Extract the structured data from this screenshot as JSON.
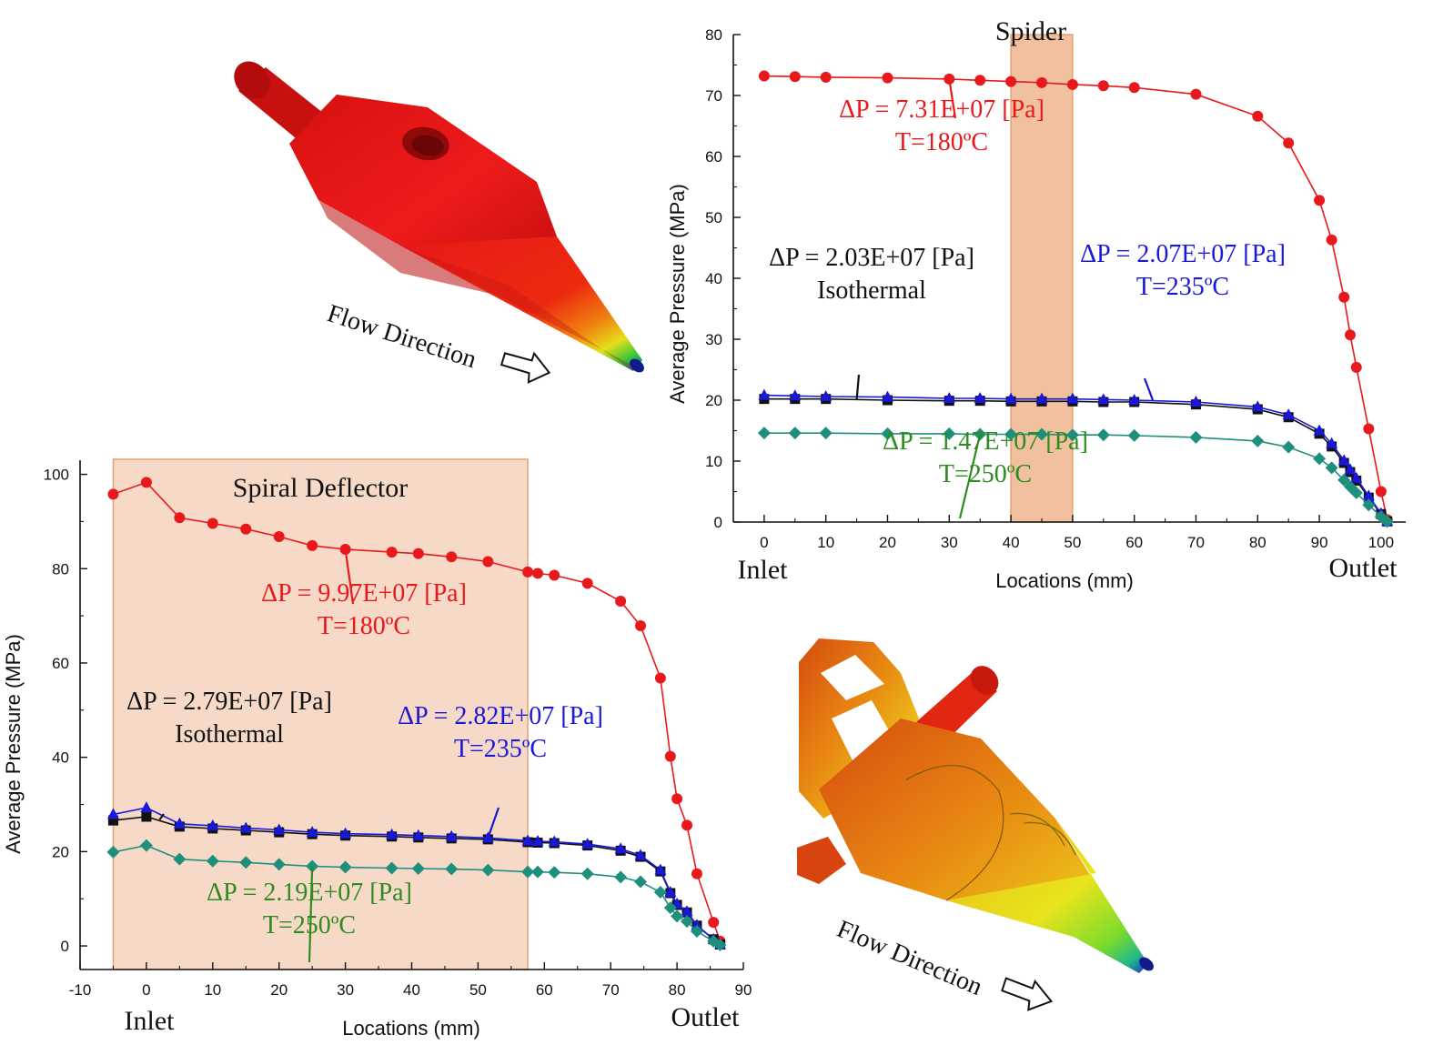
{
  "colors": {
    "red": "#e8191c",
    "black": "#111111",
    "blue": "#1a18d8",
    "teal": "#1f8f7d",
    "green_text": "#2e8b1f",
    "shade": "#f6d7c4",
    "shade_edge": "#e2a273",
    "shade_spider": "#eeb58d"
  },
  "images": {
    "top_model_label": "Flow Direction",
    "bottom_model_label": "Flow Direction"
  },
  "chart_data": [
    {
      "type": "line",
      "title": "Spider",
      "xlabel": "Locations (mm)",
      "ylabel": "Average Pressure (MPa)",
      "xlim": [
        -5,
        104
      ],
      "ylim": [
        0,
        80
      ],
      "x_ticks": [
        0,
        10,
        20,
        30,
        40,
        50,
        60,
        70,
        80,
        90,
        100
      ],
      "y_ticks": [
        0,
        10,
        20,
        30,
        40,
        50,
        60,
        70,
        80
      ],
      "x_end_labels": {
        "left": "Inlet",
        "right": "Outlet"
      },
      "shaded_region": [
        40,
        50
      ],
      "series": [
        {
          "key": "red",
          "marker": "circle",
          "x": [
            0,
            5,
            10,
            20,
            30,
            35,
            40,
            45,
            50,
            55,
            60,
            70,
            80,
            85,
            90,
            92,
            94,
            95,
            96,
            98,
            100,
            101
          ],
          "y": [
            73.2,
            73.1,
            73.0,
            72.9,
            72.7,
            72.5,
            72.3,
            72.1,
            71.8,
            71.6,
            71.3,
            70.2,
            66.6,
            62.2,
            52.8,
            46.3,
            36.9,
            30.7,
            25.4,
            15.3,
            5.0,
            0.4
          ]
        },
        {
          "key": "black",
          "marker": "square",
          "x": [
            0,
            5,
            10,
            20,
            30,
            35,
            40,
            45,
            50,
            55,
            60,
            70,
            80,
            85,
            90,
            92,
            94,
            95,
            96,
            98,
            100,
            101
          ],
          "y": [
            20.2,
            20.2,
            20.2,
            20.0,
            19.9,
            19.9,
            19.8,
            19.8,
            19.8,
            19.7,
            19.7,
            19.3,
            18.5,
            17.2,
            14.5,
            12.4,
            9.7,
            8.2,
            6.8,
            4.0,
            1.3,
            0.1
          ]
        },
        {
          "key": "blue",
          "marker": "triangle",
          "x": [
            0,
            5,
            10,
            20,
            30,
            35,
            40,
            45,
            50,
            55,
            60,
            70,
            80,
            85,
            90,
            92,
            94,
            95,
            96,
            98,
            100,
            101
          ],
          "y": [
            20.8,
            20.7,
            20.6,
            20.5,
            20.3,
            20.3,
            20.2,
            20.2,
            20.2,
            20.1,
            20.0,
            19.7,
            18.9,
            17.6,
            15.0,
            12.9,
            10.1,
            8.6,
            7.2,
            4.3,
            1.4,
            0.1
          ]
        },
        {
          "key": "teal",
          "marker": "diamond",
          "x": [
            0,
            5,
            10,
            20,
            30,
            35,
            40,
            45,
            50,
            55,
            60,
            70,
            80,
            85,
            90,
            92,
            94,
            95,
            96,
            98,
            100,
            101
          ],
          "y": [
            14.6,
            14.6,
            14.6,
            14.5,
            14.5,
            14.4,
            14.4,
            14.4,
            14.3,
            14.3,
            14.2,
            13.9,
            13.3,
            12.3,
            10.4,
            8.9,
            6.9,
            5.8,
            4.8,
            2.8,
            0.9,
            0.1
          ]
        }
      ],
      "annotations": [
        {
          "key": "red",
          "lines": [
            "ΔP = 7.31E+07 [Pa]",
            "T=180ºC"
          ],
          "point": [
            30,
            72.7
          ]
        },
        {
          "key": "black",
          "lines": [
            "ΔP = 2.03E+07 [Pa]",
            "Isothermal"
          ],
          "point": [
            15,
            20.1
          ]
        },
        {
          "key": "blue",
          "lines": [
            "ΔP = 2.07E+07 [Pa]",
            "T=235ºC"
          ],
          "point": [
            63,
            20.0
          ]
        },
        {
          "key": "green",
          "lines": [
            "ΔP = 1.47E+07 [Pa]",
            "T=250ºC"
          ],
          "point": [
            35,
            14.4
          ]
        }
      ]
    },
    {
      "type": "line",
      "title": "Spiral Deflector",
      "xlabel": "Locations (mm)",
      "ylabel": "Average Pressure (MPa)",
      "xlim": [
        -10,
        90
      ],
      "ylim": [
        -5,
        103
      ],
      "x_ticks": [
        -10,
        0,
        10,
        20,
        30,
        40,
        50,
        60,
        70,
        80,
        90
      ],
      "y_ticks": [
        0,
        20,
        40,
        60,
        80,
        100
      ],
      "x_end_labels": {
        "left": "Inlet",
        "right": "Outlet"
      },
      "shaded_region": [
        -5,
        57.5
      ],
      "series": [
        {
          "key": "red",
          "marker": "circle",
          "x": [
            -5,
            0,
            5,
            10,
            15,
            20,
            25,
            30,
            37,
            41,
            46,
            51.5,
            57.5,
            59,
            61.5,
            66.5,
            71.5,
            74.5,
            77.5,
            79,
            80,
            81.5,
            83,
            85.5,
            86.5
          ],
          "y": [
            95.8,
            98.3,
            90.8,
            89.6,
            88.4,
            86.8,
            84.9,
            84.1,
            83.5,
            83.2,
            82.5,
            81.5,
            79.3,
            79.0,
            78.6,
            76.9,
            73.1,
            67.9,
            56.8,
            40.2,
            31.2,
            25.6,
            15.3,
            5.0,
            1.0
          ]
        },
        {
          "key": "black",
          "marker": "square",
          "x": [
            -5,
            0,
            5,
            10,
            15,
            20,
            25,
            30,
            37,
            41,
            46,
            51.5,
            57.5,
            59,
            61.5,
            66.5,
            71.5,
            74.5,
            77.5,
            79,
            80,
            81.5,
            83,
            85.5,
            86.5
          ],
          "y": [
            26.6,
            27.4,
            25.3,
            24.9,
            24.5,
            24.1,
            23.7,
            23.4,
            23.2,
            23.0,
            22.8,
            22.6,
            22.0,
            21.9,
            21.8,
            21.3,
            20.2,
            18.9,
            15.8,
            11.2,
            8.7,
            7.1,
            4.3,
            1.4,
            0.3
          ]
        },
        {
          "key": "blue",
          "marker": "triangle",
          "x": [
            -5,
            0,
            5,
            10,
            15,
            20,
            25,
            30,
            37,
            41,
            46,
            51.5,
            57.5,
            59,
            61.5,
            66.5,
            71.5,
            74.5,
            77.5,
            79,
            80,
            81.5,
            83,
            85.5,
            86.5
          ],
          "y": [
            27.9,
            29.3,
            25.9,
            25.5,
            25.0,
            24.6,
            24.1,
            23.8,
            23.6,
            23.4,
            23.2,
            22.9,
            22.3,
            22.2,
            22.1,
            21.6,
            20.6,
            19.2,
            16.1,
            11.4,
            8.9,
            7.3,
            4.4,
            1.4,
            0.3
          ]
        },
        {
          "key": "teal",
          "marker": "diamond",
          "x": [
            -5,
            0,
            5,
            10,
            15,
            20,
            25,
            30,
            37,
            41,
            46,
            51.5,
            57.5,
            59,
            61.5,
            66.5,
            71.5,
            74.5,
            77.5,
            79,
            80,
            81.5,
            83,
            85.5,
            86.5
          ],
          "y": [
            19.9,
            21.3,
            18.4,
            18.0,
            17.7,
            17.3,
            16.9,
            16.7,
            16.5,
            16.4,
            16.3,
            16.1,
            15.7,
            15.7,
            15.6,
            15.3,
            14.6,
            13.6,
            11.4,
            8.1,
            6.3,
            5.2,
            3.1,
            1.0,
            0.2
          ]
        }
      ],
      "annotations": [
        {
          "key": "red",
          "lines": [
            "ΔP = 9.97E+07 [Pa]",
            "T=180ºC"
          ],
          "point": [
            30,
            84.1
          ]
        },
        {
          "key": "black",
          "lines": [
            "ΔP = 2.79E+07 [Pa]",
            "Isothermal"
          ],
          "point": [
            2,
            26.8
          ]
        },
        {
          "key": "blue",
          "lines": [
            "ΔP = 2.82E+07 [Pa]",
            "T=235ºC"
          ],
          "point": [
            51.5,
            22.9
          ]
        },
        {
          "key": "green",
          "lines": [
            "ΔP = 2.19E+07 [Pa]",
            "T=250ºC"
          ],
          "point": [
            25,
            16.9
          ]
        }
      ]
    }
  ]
}
